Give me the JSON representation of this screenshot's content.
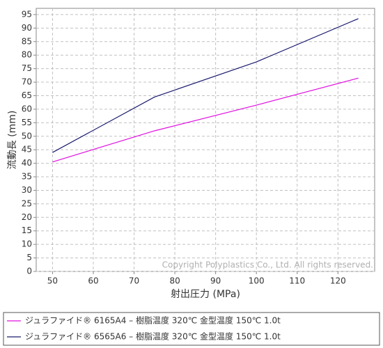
{
  "chart_data": {
    "type": "line",
    "x_label": "射出圧力 (MPa)",
    "y_label": "流動長 (mm)",
    "annotation": "Copyright Polyplastics Co., Ltd. All rights reserved.",
    "x": [
      50,
      75,
      100,
      125
    ],
    "series": [
      {
        "name": "ジュラファイド® 6165A4 – 樹脂温度 320℃ 金型温度 150℃ 1.0t",
        "color": "#e010e0",
        "values": [
          40.5,
          52,
          61.5,
          71.5
        ]
      },
      {
        "name": "ジュラファイド® 6565A6 – 樹脂温度 320℃ 金型温度 150℃ 1.0t",
        "color": "#1a1a6e",
        "values": [
          44,
          64.5,
          77.5,
          93.5
        ]
      }
    ],
    "xlim": [
      46,
      129
    ],
    "xticks": [
      50,
      60,
      70,
      80,
      90,
      100,
      110,
      120
    ],
    "ylim": [
      0,
      97.3
    ],
    "yticks": [
      0,
      5,
      10,
      15,
      20,
      25,
      30,
      35,
      40,
      45,
      50,
      55,
      60,
      65,
      70,
      75,
      80,
      85,
      90,
      95
    ],
    "grid": true
  }
}
